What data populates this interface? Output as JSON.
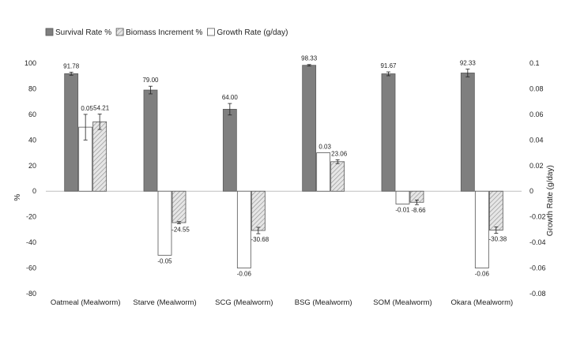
{
  "chart_data": {
    "type": "bar",
    "categories": [
      "Oatmeal (Mealworm)",
      "Starve (Mealworm)",
      "SCG (Mealworm)",
      "BSG (Mealworm)",
      "SOM (Mealworm)",
      "Okara (Mealworm)"
    ],
    "series": [
      {
        "name": "Survival Rate %",
        "axis": "left",
        "color": "#7f7f7f",
        "pattern": "solid",
        "values": [
          91.78,
          79.0,
          64.0,
          98.33,
          91.67,
          92.33
        ],
        "value_labels": [
          "91.78",
          "79.00",
          "64.00",
          "98.33",
          "91.67",
          "92.33"
        ],
        "errors": [
          1.2,
          3.0,
          4.5,
          0.6,
          1.5,
          3.0
        ]
      },
      {
        "name": "Growth Rate (g/day)",
        "axis": "right",
        "color": "#ffffff",
        "pattern": "none",
        "values": [
          0.05,
          -0.05,
          -0.06,
          0.03,
          -0.01,
          -0.06
        ],
        "value_labels": [
          "0.05",
          "-0.05",
          "-0.06",
          "0.03",
          "-0.01",
          "-0.06"
        ],
        "errors": [
          0.01,
          0,
          0,
          0,
          0,
          0
        ]
      },
      {
        "name": "Biomass Increment %",
        "axis": "left",
        "color": "#d9d9d9",
        "pattern": "hatch",
        "values": [
          54.21,
          -24.55,
          -30.68,
          23.06,
          -8.66,
          -30.38
        ],
        "value_labels": [
          "54.21",
          "-24.55",
          "-30.68",
          "23.06",
          "-8.66",
          "-30.38"
        ],
        "errors": [
          6.0,
          0.8,
          2.5,
          1.5,
          1.8,
          2.5
        ]
      }
    ],
    "legend": {
      "position": "top-left",
      "entries": [
        {
          "name": "Survival Rate %",
          "pattern": "solid"
        },
        {
          "name": "Biomass Increment %",
          "pattern": "hatch"
        },
        {
          "name": "Growth Rate (g/day)",
          "pattern": "none"
        }
      ]
    },
    "ylabel": "%",
    "y2label": "Growth Rate (g/day)",
    "ylim": [
      -80,
      100
    ],
    "y2lim": [
      -0.08,
      0.1
    ],
    "yticks": [
      "100",
      "80",
      "60",
      "40",
      "20",
      "0",
      "-20",
      "-40",
      "-60",
      "-80"
    ],
    "y2ticks": [
      "0.1",
      "0.08",
      "0.06",
      "0.04",
      "0.02",
      "0",
      "-0.02",
      "-0.04",
      "-0.06",
      "-0.08"
    ],
    "grid": false
  }
}
